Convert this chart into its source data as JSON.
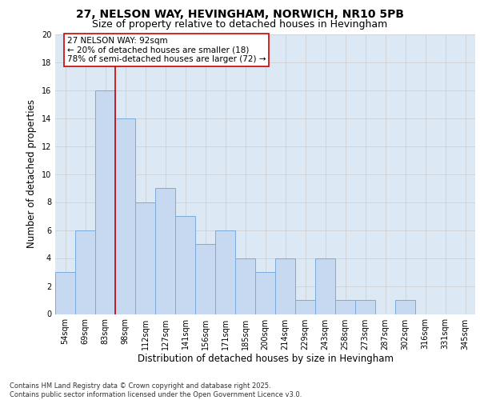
{
  "title1": "27, NELSON WAY, HEVINGHAM, NORWICH, NR10 5PB",
  "title2": "Size of property relative to detached houses in Hevingham",
  "xlabel": "Distribution of detached houses by size in Hevingham",
  "ylabel": "Number of detached properties",
  "categories": [
    "54sqm",
    "69sqm",
    "83sqm",
    "98sqm",
    "112sqm",
    "127sqm",
    "141sqm",
    "156sqm",
    "171sqm",
    "185sqm",
    "200sqm",
    "214sqm",
    "229sqm",
    "243sqm",
    "258sqm",
    "273sqm",
    "287sqm",
    "302sqm",
    "316sqm",
    "331sqm",
    "345sqm"
  ],
  "values": [
    3,
    6,
    16,
    14,
    8,
    9,
    7,
    5,
    6,
    4,
    3,
    4,
    1,
    4,
    1,
    1,
    0,
    1,
    0,
    0,
    0
  ],
  "bar_color": "#c6d9f0",
  "bar_edge_color": "#7aabdb",
  "vline_x": 2.5,
  "vline_color": "#cc0000",
  "annotation_text": "27 NELSON WAY: 92sqm\n← 20% of detached houses are smaller (18)\n78% of semi-detached houses are larger (72) →",
  "annotation_box_color": "#ffffff",
  "annotation_box_edge": "#cc0000",
  "ylim": [
    0,
    20
  ],
  "yticks": [
    0,
    2,
    4,
    6,
    8,
    10,
    12,
    14,
    16,
    18,
    20
  ],
  "grid_color": "#cccccc",
  "background_color": "#dce9f5",
  "footer": "Contains HM Land Registry data © Crown copyright and database right 2025.\nContains public sector information licensed under the Open Government Licence v3.0.",
  "title1_fontsize": 10,
  "title2_fontsize": 9,
  "annotation_fontsize": 7.5,
  "tick_fontsize": 7,
  "axis_label_fontsize": 8.5,
  "footer_fontsize": 6
}
